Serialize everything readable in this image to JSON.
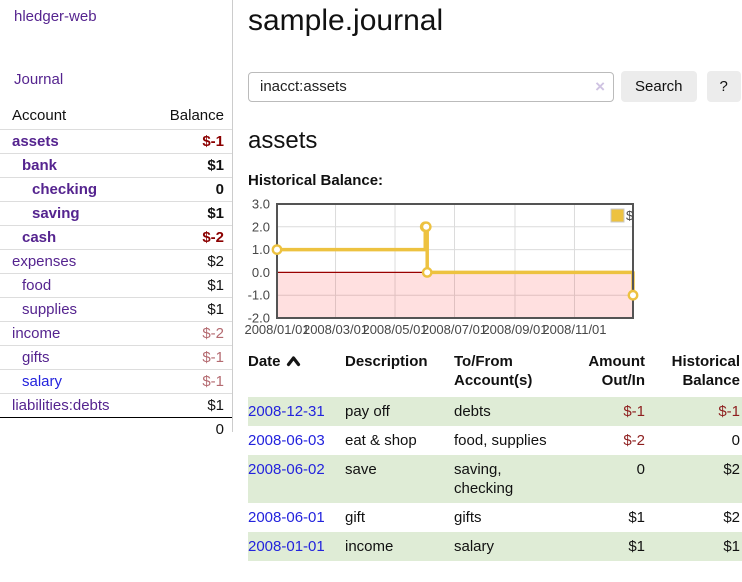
{
  "app_title": "hledger-web",
  "sidebar": {
    "brand": "hledger-web",
    "journal_link": "Journal",
    "accounts_table": {
      "headers": {
        "account": "Account",
        "balance": "Balance"
      },
      "rows": [
        {
          "account": "assets",
          "balance": "$-1"
        },
        {
          "account": "bank",
          "balance": "$1"
        },
        {
          "account": "checking",
          "balance": "0"
        },
        {
          "account": "saving",
          "balance": "$1"
        },
        {
          "account": "cash",
          "balance": "$-2"
        },
        {
          "account": "expenses",
          "balance": "$2"
        },
        {
          "account": "food",
          "balance": "$1"
        },
        {
          "account": "supplies",
          "balance": "$1"
        },
        {
          "account": "income",
          "balance": "$-2"
        },
        {
          "account": "gifts",
          "balance": "$-1"
        },
        {
          "account": "salary",
          "balance": "$-1"
        },
        {
          "account": "liabilities:debts",
          "balance": "$1"
        }
      ],
      "total": "0"
    }
  },
  "header": {
    "title": "sample.journal"
  },
  "search": {
    "value": "inacct:assets",
    "clear_icon": "×",
    "search_button": "Search",
    "help_button": "?"
  },
  "main": {
    "account_heading": "assets",
    "chart_label": "Historical Balance:"
  },
  "chart_data": {
    "type": "line",
    "title": "Historical Balance:",
    "step": true,
    "ylim": [
      -2,
      3
    ],
    "x_span_days": 365,
    "grid": true,
    "grid_color": "#dcdcdc",
    "border_color": "#545454",
    "zero_line_color": "#990000",
    "negative_fill": "rgba(255,0,0,0.12)",
    "legend_position": "top-right",
    "series": [
      {
        "name": "$",
        "color": "#edc240",
        "points": [
          {
            "date": "2008-01-01",
            "day": 0,
            "value": 1
          },
          {
            "date": "2008-06-01",
            "day": 152,
            "value": 2
          },
          {
            "date": "2008-06-02",
            "day": 153,
            "value": 2
          },
          {
            "date": "2008-06-03",
            "day": 154,
            "value": 0
          },
          {
            "date": "2008-12-31",
            "day": 365,
            "value": -1
          }
        ]
      }
    ],
    "yticks": [
      {
        "label": "3.0",
        "value": 3
      },
      {
        "label": "2.0",
        "value": 2
      },
      {
        "label": "1.0",
        "value": 1
      },
      {
        "label": "0.0",
        "value": 0
      },
      {
        "label": "-1.0",
        "value": -1
      },
      {
        "label": "-2.0",
        "value": -2
      }
    ],
    "xticks": [
      {
        "label": "2008/01/01",
        "day": 0
      },
      {
        "label": "2008/03/01",
        "day": 60
      },
      {
        "label": "2008/05/01",
        "day": 121
      },
      {
        "label": "2008/07/01",
        "day": 182
      },
      {
        "label": "2008/09/01",
        "day": 244
      },
      {
        "label": "2008/11/01",
        "day": 305
      }
    ]
  },
  "register_table": {
    "headers": {
      "date": "Date",
      "description": "Description",
      "accounts": "To/From Account(s)",
      "amount": "Amount Out/In",
      "balance": "Historical Balance"
    },
    "rows": [
      {
        "date": "2008-12-31",
        "description": "pay off",
        "accounts": "debts",
        "amount": "$-1",
        "balance": "$-1"
      },
      {
        "date": "2008-06-03",
        "description": "eat & shop",
        "accounts": "food, supplies",
        "amount": "$-2",
        "balance": "0"
      },
      {
        "date": "2008-06-02",
        "description": "save",
        "accounts": "saving, checking",
        "amount": "0",
        "balance": "$2"
      },
      {
        "date": "2008-06-01",
        "description": "gift",
        "accounts": "gifts",
        "amount": "$1",
        "balance": "$2"
      },
      {
        "date": "2008-01-01",
        "description": "income",
        "accounts": "salary",
        "amount": "$1",
        "balance": "$1"
      }
    ]
  }
}
